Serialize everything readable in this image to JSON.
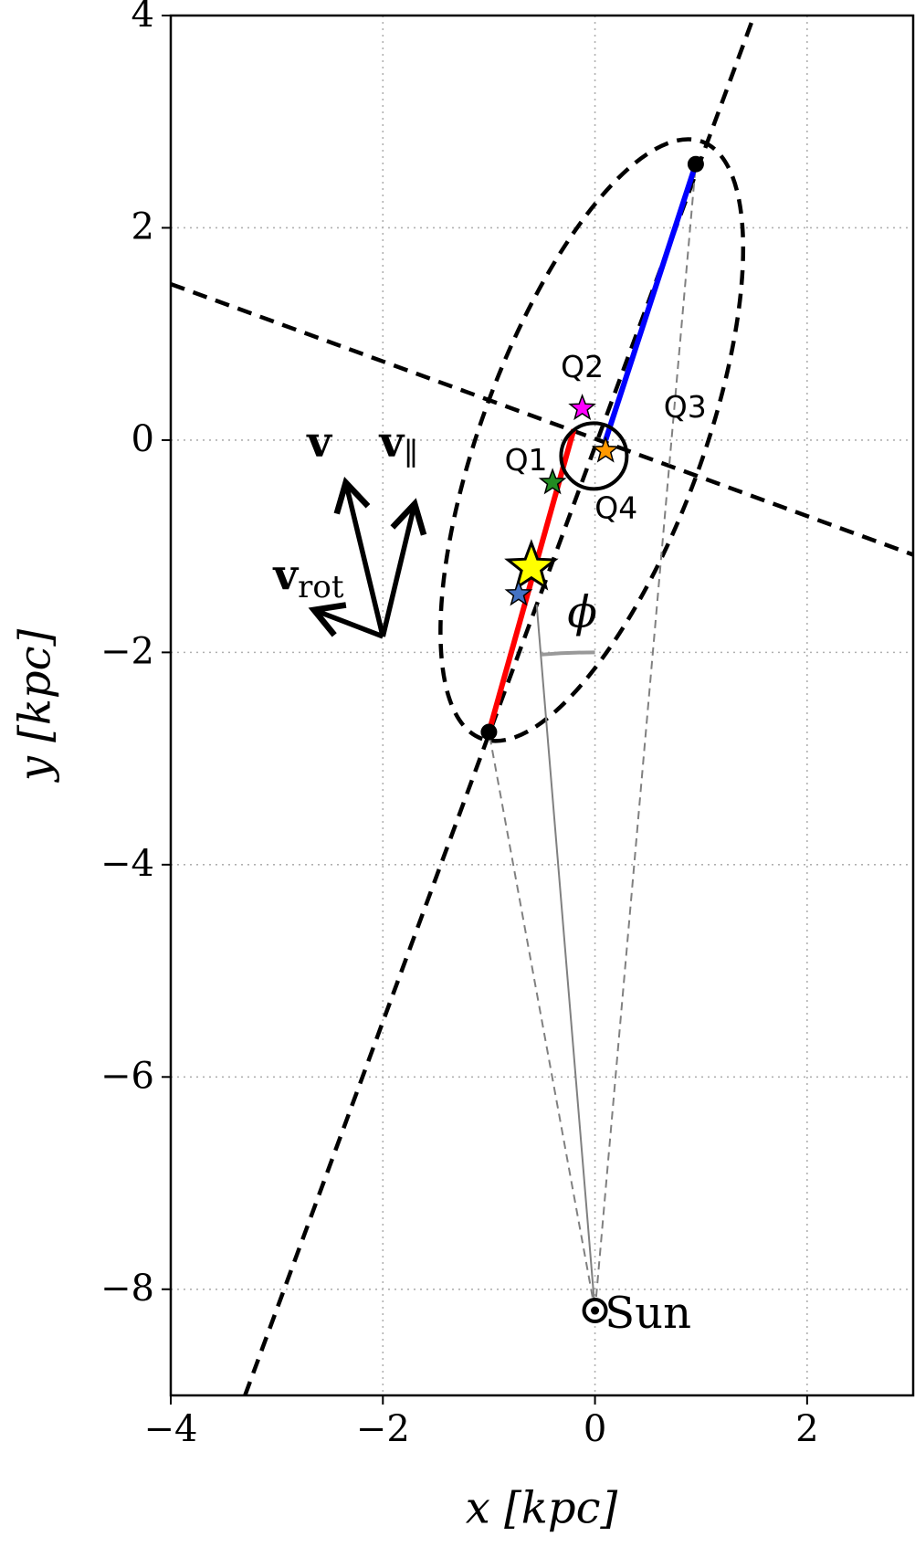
{
  "chart_data": {
    "type": "scatter",
    "xlabel": "x [kpc]",
    "ylabel": "y [kpc]",
    "xlim": [
      -4,
      3
    ],
    "ylim": [
      -9,
      4
    ],
    "xticks": [
      {
        "value": -4,
        "label": "−4"
      },
      {
        "value": -2,
        "label": "−2"
      },
      0,
      2
    ],
    "yticks": [
      4,
      2,
      0,
      {
        "value": -2,
        "label": "−2"
      },
      {
        "value": -4,
        "label": "−4"
      },
      {
        "value": -6,
        "label": "−6"
      },
      {
        "value": -8,
        "label": "−8"
      }
    ],
    "grid": true,
    "segments": [
      {
        "x": [
          -3.3,
          1.5
        ],
        "y": [
          -9,
          4
        ],
        "color": "#000000",
        "style": "dashed"
      },
      {
        "x": [
          -4,
          3
        ],
        "y": [
          1.47,
          -1.08
        ],
        "color": "#000000",
        "style": "dashed"
      },
      {
        "x": [
          0,
          -1.0
        ],
        "y": [
          -8.2,
          -2.75
        ],
        "color": "#808080",
        "style": "thin-dashed"
      },
      {
        "x": [
          0,
          0.95
        ],
        "y": [
          -8.2,
          2.6
        ],
        "color": "#808080",
        "style": "thin-dashed"
      },
      {
        "x": [
          0,
          -0.55
        ],
        "y": [
          -8.2,
          -1.55
        ],
        "color": "#808080",
        "style": "thin"
      },
      {
        "x": [
          -1.0,
          -0.2
        ],
        "y": [
          -2.75,
          0.1
        ],
        "color": "#ff0000",
        "style": "thick"
      },
      {
        "x": [
          0.1,
          0.95
        ],
        "y": [
          0.0,
          2.6
        ],
        "color": "#0000ff",
        "style": "thick"
      }
    ],
    "ellipse": {
      "center": [
        -0.03,
        0
      ],
      "a": 3.0,
      "b": 1.04,
      "angle": 69.7,
      "color": "#000000"
    },
    "circle": {
      "center": [
        -0.01,
        -0.15
      ],
      "radius": 0.31,
      "color": "#000000"
    },
    "arc": {
      "center": [
        0,
        -8.2
      ],
      "radius": 6.2,
      "angles": [
        90,
        94.7
      ],
      "color": "#999999"
    },
    "points": [
      {
        "x": -1.0,
        "y": -2.75,
        "color": "#000000",
        "marker": "dot"
      },
      {
        "x": 0.95,
        "y": 2.6,
        "color": "#000000",
        "marker": "dot"
      },
      {
        "x": -0.12,
        "y": 0.3,
        "color": "#ff00ff",
        "marker": "star"
      },
      {
        "x": 0.1,
        "y": -0.1,
        "color": "#ff9900",
        "marker": "star"
      },
      {
        "x": -0.4,
        "y": -0.4,
        "color": "#228b22",
        "marker": "star"
      },
      {
        "x": -0.6,
        "y": -1.2,
        "color": "#ffff00",
        "marker": "star-large"
      },
      {
        "x": -0.72,
        "y": -1.45,
        "color": "#4472c4",
        "marker": "star"
      },
      {
        "x": 0,
        "y": -8.2,
        "color": "#000000",
        "marker": "sun"
      }
    ],
    "arrows": [
      {
        "x": [
          -2,
          -2.35
        ],
        "y": [
          -1.85,
          -0.4
        ]
      },
      {
        "x": [
          -2,
          -1.7
        ],
        "y": [
          -1.85,
          -0.6
        ]
      },
      {
        "x": [
          -2,
          -2.65
        ],
        "y": [
          -1.85,
          -1.6
        ]
      }
    ],
    "annotations": [
      {
        "text": "Q1",
        "x": -0.65,
        "y": -0.2,
        "style": "q"
      },
      {
        "text": "Q2",
        "x": -0.12,
        "y": 0.68,
        "style": "q"
      },
      {
        "text": "Q3",
        "x": 0.85,
        "y": 0.3,
        "style": "q"
      },
      {
        "text": "Q4",
        "x": 0.2,
        "y": -0.65,
        "style": "q"
      },
      {
        "text": "ϕ",
        "x": -0.12,
        "y": -1.65,
        "style": "math"
      },
      {
        "text": "Sun",
        "x": 0.5,
        "y": -8.25,
        "style": "plain"
      },
      {
        "text": "v",
        "x": -2.6,
        "y": -0.05,
        "style": "vec"
      },
      {
        "text": "v",
        "sub": "∥",
        "x": -1.85,
        "y": -0.05,
        "style": "vec"
      },
      {
        "text": "v",
        "sub": "rot",
        "x": -2.7,
        "y": -1.3,
        "style": "vec"
      }
    ]
  }
}
